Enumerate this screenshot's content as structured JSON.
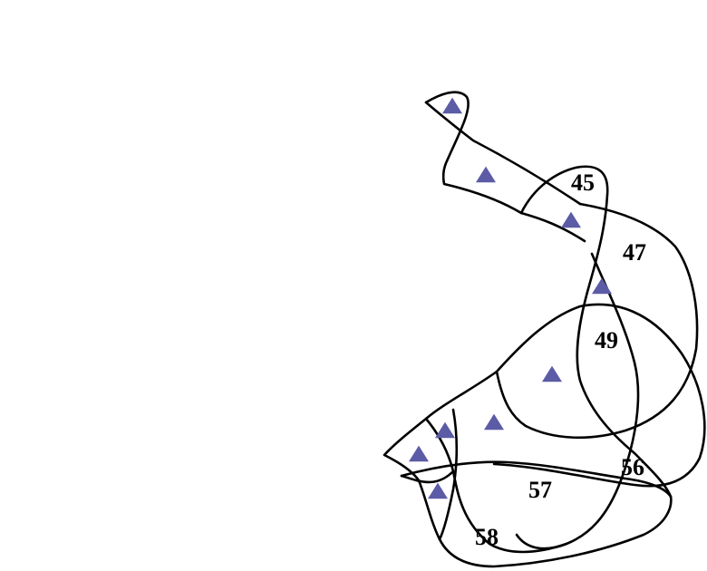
{
  "diagram": {
    "labels": {
      "region_45": "45",
      "region_47": "47",
      "region_49": "49",
      "region_56": "56",
      "region_57": "57",
      "region_58": "58"
    },
    "marker": {
      "icon": "triangle-marker-icon",
      "color": "#5b5ba6",
      "count": 10
    },
    "line_color": "#000000"
  }
}
